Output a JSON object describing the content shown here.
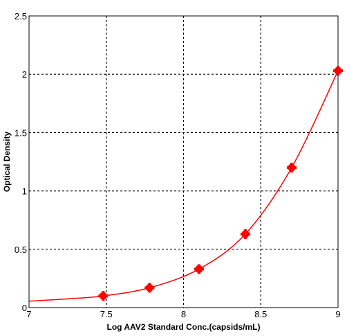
{
  "chart_data": {
    "type": "scatter",
    "title": "",
    "xlabel": "Log AAV2 Standard Conc.(capsids/mL)",
    "ylabel": "Optical Density",
    "xlim": [
      7,
      9
    ],
    "ylim": [
      0,
      2.5
    ],
    "x_ticks": [
      7,
      7.5,
      8,
      8.5,
      9
    ],
    "y_ticks": [
      0,
      0.5,
      1,
      1.5,
      2,
      2.5
    ],
    "x_tick_labels": [
      "7",
      "7.5",
      "8",
      "8.5",
      "9"
    ],
    "y_tick_labels": [
      "0",
      "0.5",
      "1",
      "1.5",
      "2",
      "2.5"
    ],
    "grid": true,
    "grid_style": "dotted",
    "series": [
      {
        "color": "#ff0000",
        "x": [
          7.48,
          7.78,
          8.1,
          8.4,
          8.7,
          9.0
        ],
        "y": [
          0.1,
          0.17,
          0.33,
          0.63,
          1.2,
          2.03
        ]
      }
    ],
    "fit_curve": {
      "color": "#ff0000",
      "x": [
        7.0,
        7.25,
        7.48,
        7.78,
        8.1,
        8.4,
        8.7,
        9.0
      ],
      "y": [
        0.055,
        0.075,
        0.1,
        0.17,
        0.33,
        0.63,
        1.2,
        2.03
      ]
    }
  }
}
